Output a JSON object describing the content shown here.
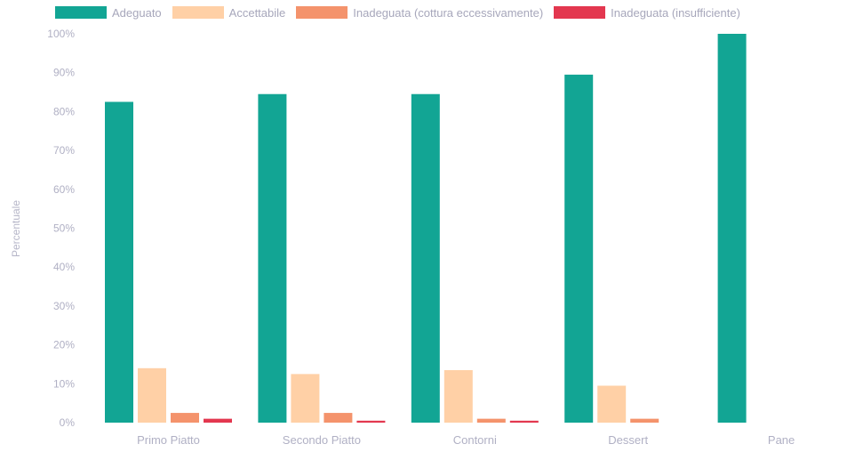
{
  "chart_data": {
    "type": "bar",
    "title": "",
    "xlabel": "",
    "ylabel": "Percentuale",
    "ylim": [
      0,
      100
    ],
    "yticks": [
      "0%",
      "10%",
      "20%",
      "30%",
      "40%",
      "50%",
      "60%",
      "70%",
      "80%",
      "90%",
      "100%"
    ],
    "categories": [
      "Primo Piatto",
      "Secondo Piatto",
      "Contorni",
      "Dessert",
      "Pane"
    ],
    "series": [
      {
        "name": "Adeguato",
        "color": "#12a594",
        "values": [
          82.5,
          84.5,
          84.5,
          89.5,
          100
        ]
      },
      {
        "name": "Accettabile",
        "color": "#ffd0a6",
        "values": [
          14,
          12.5,
          13.5,
          9.5,
          0
        ]
      },
      {
        "name": "Inadeguata (cottura eccessivamente)",
        "color": "#f4936c",
        "values": [
          2.5,
          2.5,
          1,
          1,
          0
        ]
      },
      {
        "name": "Inadeguata (insufficiente)",
        "color": "#e3374f",
        "values": [
          1,
          0.5,
          0.5,
          0,
          0
        ]
      }
    ],
    "grid": false,
    "legend_position": "top-left"
  }
}
